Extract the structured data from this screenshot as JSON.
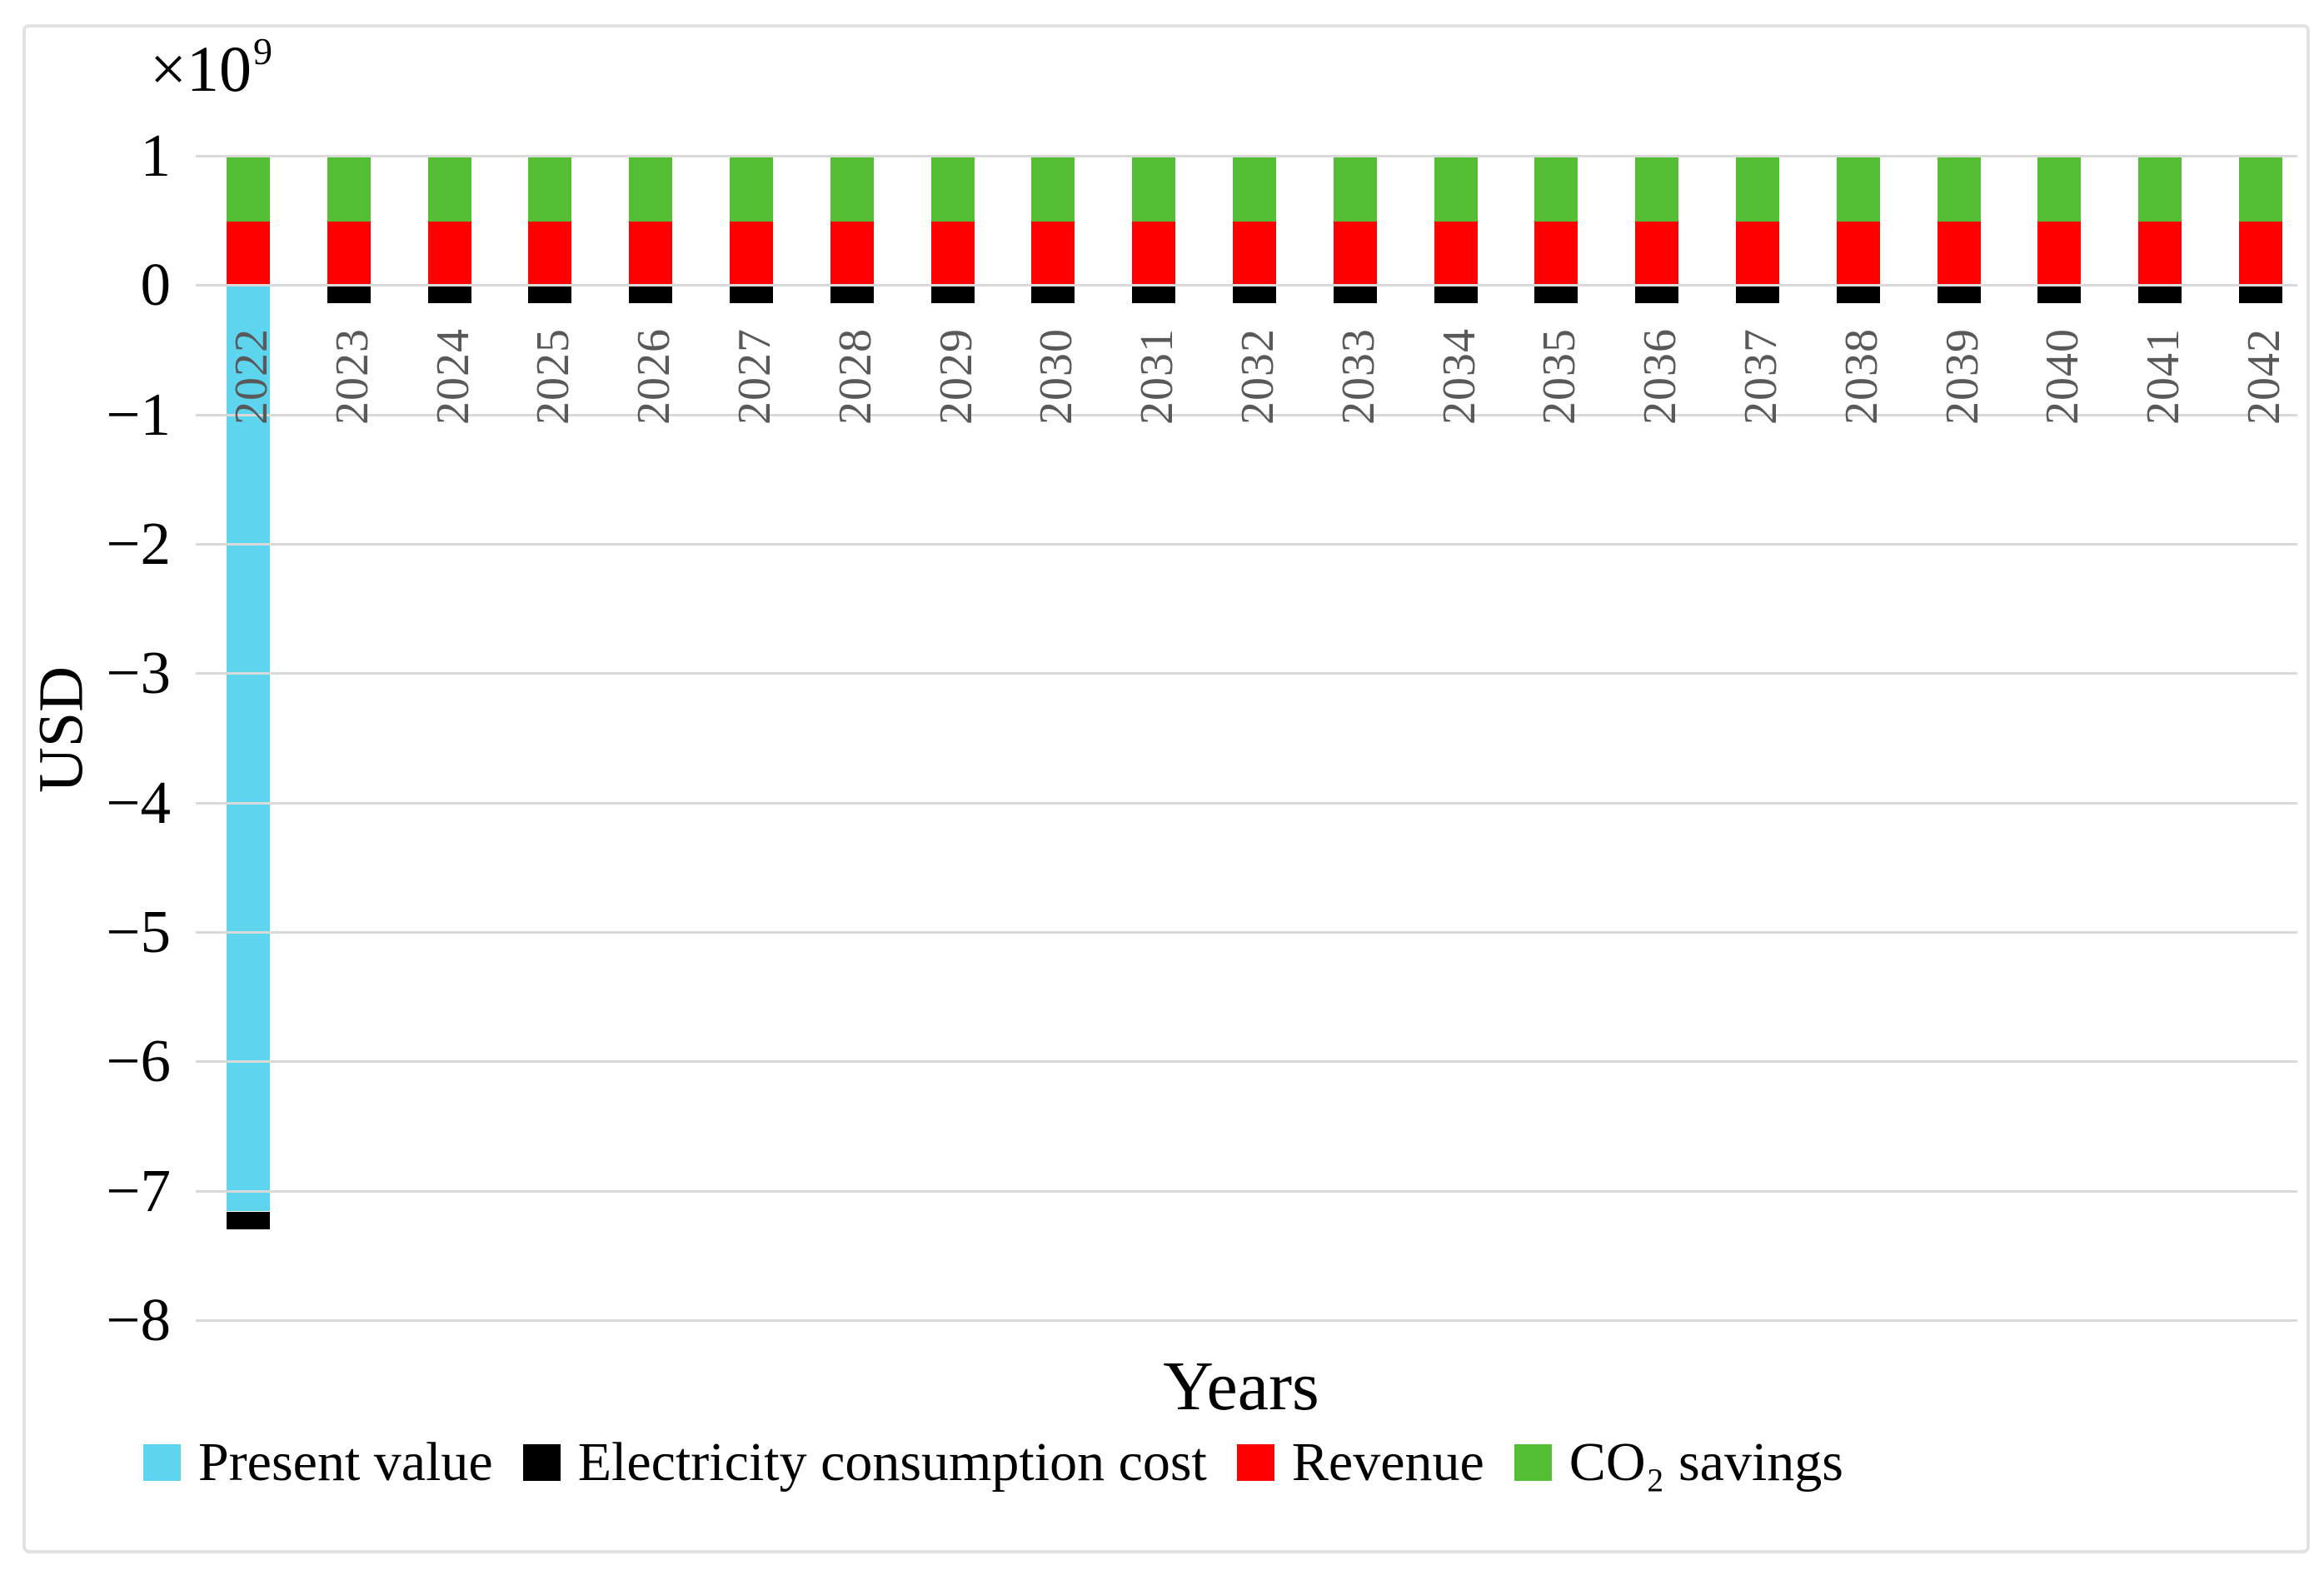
{
  "axis": {
    "multiplier_base": "×10",
    "multiplier_exp": "9"
  },
  "chart_data": {
    "type": "bar",
    "stacked": true,
    "title": "",
    "xlabel": "Years",
    "ylabel": "USD",
    "y_unit_multiplier": "×10⁹",
    "ylim": [
      -8,
      1
    ],
    "yticks": [
      1,
      0,
      -1,
      -2,
      -3,
      -4,
      -5,
      -6,
      -7,
      -8
    ],
    "ytick_labels": [
      "1",
      "0",
      "−1",
      "−2",
      "−3",
      "−4",
      "−5",
      "−6",
      "−7",
      "−8"
    ],
    "grid": true,
    "legend_position": "bottom",
    "categories": [
      "2022",
      "2023",
      "2024",
      "2025",
      "2026",
      "2027",
      "2028",
      "2029",
      "2030",
      "2031",
      "2032",
      "2033",
      "2034",
      "2035",
      "2036",
      "2037",
      "2038",
      "2039",
      "2040",
      "2041",
      "2042"
    ],
    "series": [
      {
        "name": "Present value",
        "color": "#5ED5EF",
        "values": [
          -7.16,
          0,
          0,
          0,
          0,
          0,
          0,
          0,
          0,
          0,
          0,
          0,
          0,
          0,
          0,
          0,
          0,
          0,
          0,
          0,
          0
        ]
      },
      {
        "name": "Electricity consumption cost",
        "color": "#000000",
        "values": [
          -0.14,
          -0.14,
          -0.14,
          -0.14,
          -0.14,
          -0.14,
          -0.14,
          -0.14,
          -0.14,
          -0.14,
          -0.14,
          -0.14,
          -0.14,
          -0.14,
          -0.14,
          -0.14,
          -0.14,
          -0.14,
          -0.14,
          -0.14,
          -0.14
        ]
      },
      {
        "name": "Revenue",
        "color": "#FF0000",
        "values": [
          0.49,
          0.49,
          0.49,
          0.49,
          0.49,
          0.49,
          0.49,
          0.49,
          0.49,
          0.49,
          0.49,
          0.49,
          0.49,
          0.49,
          0.49,
          0.49,
          0.49,
          0.49,
          0.49,
          0.49,
          0.49
        ]
      },
      {
        "name": "CO₂ savings",
        "color": "#54BE35",
        "values": [
          0.51,
          0.51,
          0.51,
          0.51,
          0.51,
          0.51,
          0.51,
          0.51,
          0.51,
          0.51,
          0.51,
          0.51,
          0.51,
          0.51,
          0.51,
          0.51,
          0.51,
          0.51,
          0.51,
          0.51,
          0.51
        ]
      }
    ]
  }
}
